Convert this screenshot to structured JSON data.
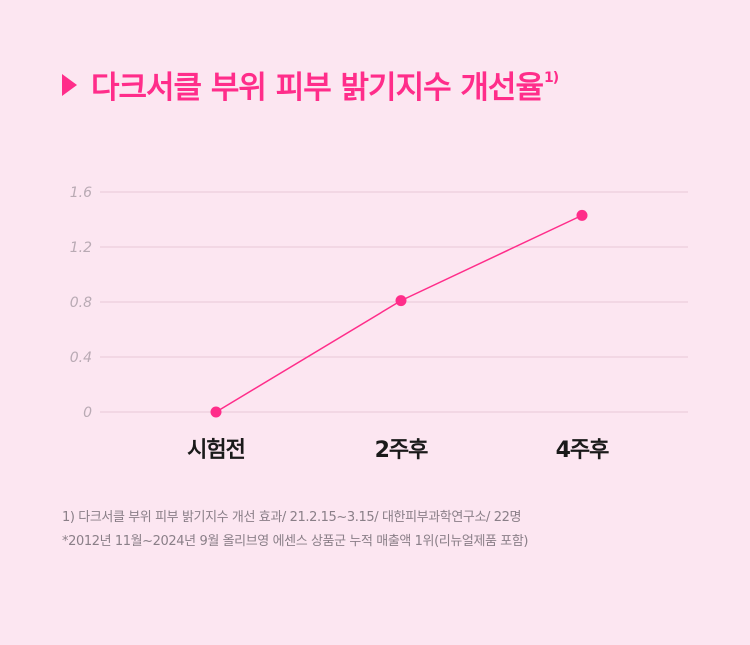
{
  "title": {
    "text": "다크서클 부위 피부 밝기지수 개선율",
    "sup": "1)"
  },
  "colors": {
    "accent": "#ff2d8a",
    "grid": "#e8c8d8",
    "tick": "#b9aab4"
  },
  "chart_data": {
    "type": "line",
    "categories": [
      "시험전",
      "2주후",
      "4주후"
    ],
    "series": [
      {
        "values": [
          0,
          0.81,
          1.43
        ]
      }
    ],
    "yticks": [
      "0",
      "0.4",
      "0.8",
      "1.2",
      "1.6"
    ],
    "ylim": [
      0,
      1.6
    ],
    "grid": true
  },
  "footnotes": {
    "line1": "1) 다크서클 부위 피부 밝기지수 개선 효과/ 21.2.15~3.15/ 대한피부과학연구소/ 22명",
    "line2": "*2012년 11월~2024년 9월 올리브영 에센스 상품군 누적 매출액 1위(리뉴얼제품 포함)"
  }
}
